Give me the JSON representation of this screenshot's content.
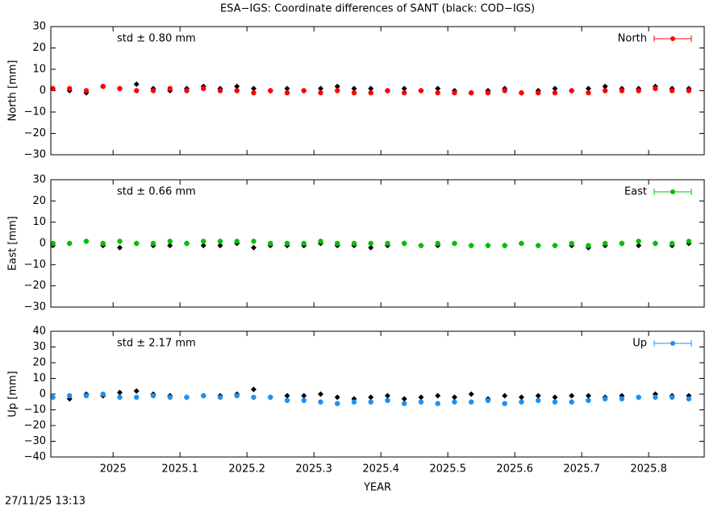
{
  "title": "ESA−IGS: Coordinate differences of SANT (black: COD−IGS)",
  "footer": "27/11/25 13:13",
  "chart_data": [
    {
      "type": "scatter",
      "ylabel": "North [mm]",
      "annotation": "std ± 0.80 mm",
      "xlim": [
        2024.907,
        2025.883
      ],
      "xticks": [
        2025,
        2025.1,
        2025.2,
        2025.3,
        2025.4,
        2025.5,
        2025.6,
        2025.7,
        2025.8
      ],
      "ylim": [
        -30,
        30
      ],
      "yticks": [
        {
          "value": -30,
          "label": "−30"
        },
        {
          "value": -20,
          "label": "−20"
        },
        {
          "value": -10,
          "label": "−10"
        },
        0,
        10,
        20,
        30
      ],
      "x": [
        2024.91,
        2024.935,
        2024.96,
        2024.985,
        2025.01,
        2025.035,
        2025.06,
        2025.085,
        2025.11,
        2025.135,
        2025.16,
        2025.185,
        2025.21,
        2025.235,
        2025.26,
        2025.285,
        2025.31,
        2025.335,
        2025.36,
        2025.385,
        2025.41,
        2025.435,
        2025.46,
        2025.485,
        2025.51,
        2025.535,
        2025.56,
        2025.585,
        2025.61,
        2025.635,
        2025.66,
        2025.685,
        2025.71,
        2025.735,
        2025.76,
        2025.785,
        2025.81,
        2025.835,
        2025.86
      ],
      "series": [
        {
          "color": "#000000",
          "values": [
            1,
            0,
            -1,
            2,
            1,
            3,
            1,
            0,
            1,
            2,
            1,
            2,
            1,
            0,
            1,
            0,
            1,
            2,
            1,
            1,
            0,
            1,
            0,
            1,
            0,
            -1,
            0,
            1,
            -1,
            0,
            1,
            0,
            1,
            2,
            1,
            1,
            2,
            1,
            1
          ]
        },
        {
          "name": "North",
          "color": "#ff0000",
          "values": [
            1,
            1,
            0,
            2,
            1,
            0,
            0,
            1,
            0,
            1,
            0,
            0,
            -1,
            0,
            -1,
            0,
            -1,
            0,
            -1,
            -1,
            0,
            -1,
            0,
            -1,
            -1,
            -1,
            -1,
            0,
            -1,
            -1,
            -1,
            0,
            -1,
            0,
            0,
            0,
            1,
            0,
            0
          ]
        }
      ]
    },
    {
      "type": "scatter",
      "ylabel": "East [mm]",
      "annotation": "std ± 0.66 mm",
      "xlim": [
        2024.907,
        2025.883
      ],
      "xticks": [
        2025,
        2025.1,
        2025.2,
        2025.3,
        2025.4,
        2025.5,
        2025.6,
        2025.7,
        2025.8
      ],
      "ylim": [
        -30,
        30
      ],
      "yticks": [
        {
          "value": -30,
          "label": "−30"
        },
        {
          "value": -20,
          "label": "−20"
        },
        {
          "value": -10,
          "label": "−10"
        },
        0,
        10,
        20,
        30
      ],
      "x": [
        2024.91,
        2024.935,
        2024.96,
        2024.985,
        2025.01,
        2025.035,
        2025.06,
        2025.085,
        2025.11,
        2025.135,
        2025.16,
        2025.185,
        2025.21,
        2025.235,
        2025.26,
        2025.285,
        2025.31,
        2025.335,
        2025.36,
        2025.385,
        2025.41,
        2025.435,
        2025.46,
        2025.485,
        2025.51,
        2025.535,
        2025.56,
        2025.585,
        2025.61,
        2025.635,
        2025.66,
        2025.685,
        2025.71,
        2025.735,
        2025.76,
        2025.785,
        2025.81,
        2025.835,
        2025.86
      ],
      "series": [
        {
          "color": "#000000",
          "values": [
            -1,
            0,
            1,
            -1,
            -2,
            0,
            -1,
            -1,
            0,
            -1,
            -1,
            0,
            -2,
            -1,
            -1,
            -1,
            0,
            -1,
            -1,
            -2,
            -1,
            0,
            -1,
            -1,
            0,
            -1,
            -1,
            -1,
            0,
            -1,
            -1,
            -1,
            -2,
            -1,
            0,
            -1,
            0,
            -1,
            0
          ]
        },
        {
          "name": "East",
          "color": "#00c000",
          "values": [
            0,
            0,
            1,
            0,
            1,
            0,
            0,
            1,
            0,
            1,
            1,
            1,
            1,
            0,
            0,
            0,
            1,
            0,
            0,
            0,
            0,
            0,
            -1,
            0,
            0,
            -1,
            -1,
            -1,
            0,
            -1,
            -1,
            0,
            -1,
            0,
            0,
            1,
            0,
            0,
            1
          ]
        }
      ]
    },
    {
      "type": "scatter",
      "ylabel": "Up [mm]",
      "annotation": "std ± 2.17 mm",
      "xlabel": "YEAR",
      "xlim": [
        2024.907,
        2025.883
      ],
      "xticks": [
        2025,
        2025.1,
        2025.2,
        2025.3,
        2025.4,
        2025.5,
        2025.6,
        2025.7,
        2025.8
      ],
      "ylim": [
        -40,
        40
      ],
      "yticks": [
        {
          "value": -40,
          "label": "−40"
        },
        {
          "value": -30,
          "label": "−30"
        },
        {
          "value": -20,
          "label": "−20"
        },
        {
          "value": -10,
          "label": "−10"
        },
        0,
        10,
        20,
        30,
        40
      ],
      "x": [
        2024.91,
        2024.935,
        2024.96,
        2024.985,
        2025.01,
        2025.035,
        2025.06,
        2025.085,
        2025.11,
        2025.135,
        2025.16,
        2025.185,
        2025.21,
        2025.235,
        2025.26,
        2025.285,
        2025.31,
        2025.335,
        2025.36,
        2025.385,
        2025.41,
        2025.435,
        2025.46,
        2025.485,
        2025.51,
        2025.535,
        2025.56,
        2025.585,
        2025.61,
        2025.635,
        2025.66,
        2025.685,
        2025.71,
        2025.735,
        2025.76,
        2025.785,
        2025.81,
        2025.835,
        2025.86
      ],
      "series": [
        {
          "color": "#000000",
          "values": [
            -2,
            -3,
            0,
            -1,
            1,
            2,
            0,
            -1,
            -2,
            -1,
            -1,
            0,
            3,
            -2,
            -1,
            -1,
            0,
            -2,
            -3,
            -2,
            -1,
            -3,
            -2,
            -1,
            -2,
            0,
            -3,
            -1,
            -2,
            -1,
            -2,
            -1,
            -1,
            -2,
            -1,
            -2,
            0,
            -1,
            -1
          ]
        },
        {
          "name": "Up",
          "color": "#1e90f0",
          "values": [
            -2,
            -1,
            -1,
            0,
            -2,
            -2,
            -1,
            -2,
            -2,
            -1,
            -2,
            -1,
            -2,
            -2,
            -4,
            -4,
            -5,
            -6,
            -5,
            -5,
            -4,
            -6,
            -5,
            -6,
            -5,
            -5,
            -4,
            -6,
            -5,
            -4,
            -5,
            -5,
            -4,
            -3,
            -3,
            -2,
            -2,
            -2,
            -3
          ]
        }
      ]
    }
  ]
}
